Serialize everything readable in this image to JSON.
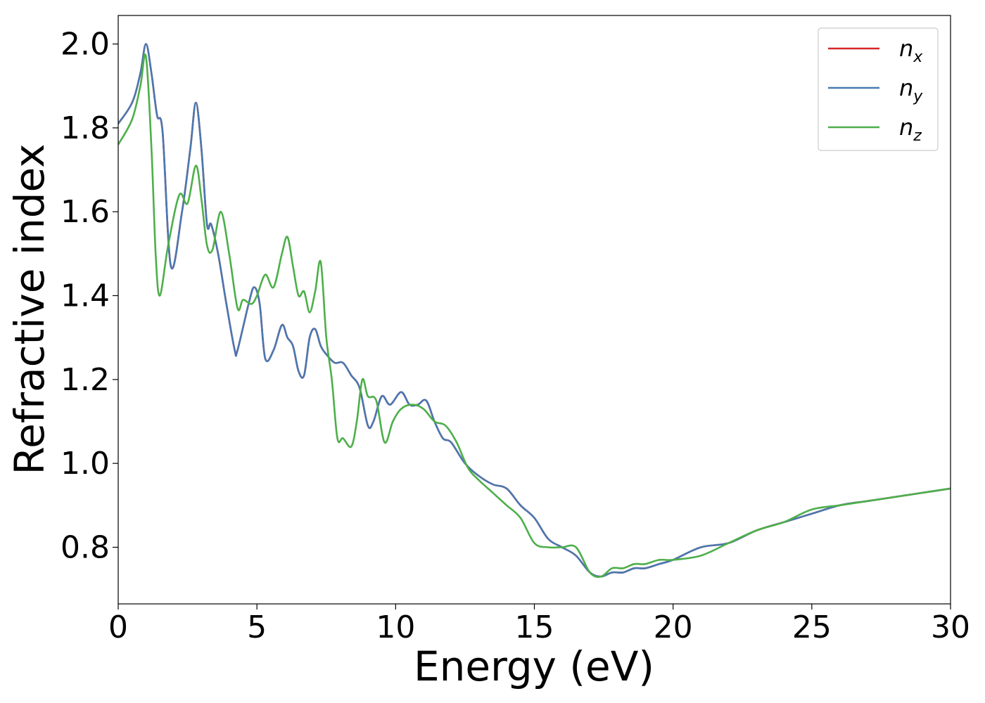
{
  "chart_data": {
    "type": "line",
    "xlabel": "Energy (eV)",
    "ylabel": "Refractive index",
    "xlim": [
      0,
      30
    ],
    "ylim": [
      0.665,
      2.068
    ],
    "xticks": [
      0,
      5,
      10,
      15,
      20,
      25,
      30
    ],
    "xtick_labels": [
      "0",
      "5",
      "10",
      "15",
      "20",
      "25",
      "30"
    ],
    "yticks": [
      0.8,
      1.0,
      1.2,
      1.4,
      1.6,
      1.8,
      2.0
    ],
    "ytick_labels": [
      "0.8",
      "1.0",
      "1.2",
      "1.4",
      "1.6",
      "1.8",
      "2.0"
    ],
    "grid": false,
    "legend_position": "top-right",
    "series": [
      {
        "name": "n",
        "subscript": "x",
        "color": "#d62728",
        "x": [
          0,
          0.5,
          0.8,
          1.0,
          1.2,
          1.4,
          1.6,
          1.9,
          2.3,
          2.6,
          2.8,
          3.0,
          3.2,
          3.35,
          3.6,
          3.9,
          4.2,
          4.3,
          4.7,
          4.9,
          5.1,
          5.3,
          5.6,
          5.9,
          6.1,
          6.3,
          6.5,
          6.7,
          6.9,
          7.1,
          7.3,
          7.5,
          7.8,
          8.1,
          8.4,
          8.7,
          9.0,
          9.2,
          9.5,
          9.8,
          10.2,
          10.5,
          10.8,
          11.1,
          11.4,
          11.7,
          12.0,
          12.5,
          13.0,
          13.5,
          14.0,
          14.5,
          15.0,
          15.5,
          16.0,
          16.5,
          17.0,
          17.4,
          17.8,
          18.2,
          18.6,
          19.0,
          19.5,
          20.0,
          21.0,
          22.0,
          23.0,
          24.0,
          25.0,
          26.0,
          27.0,
          28.0,
          29.0,
          30.0
        ],
        "values": [
          1.81,
          1.86,
          1.93,
          2.0,
          1.93,
          1.83,
          1.79,
          1.47,
          1.6,
          1.75,
          1.86,
          1.75,
          1.57,
          1.57,
          1.5,
          1.38,
          1.27,
          1.27,
          1.38,
          1.42,
          1.38,
          1.25,
          1.27,
          1.33,
          1.3,
          1.28,
          1.22,
          1.21,
          1.3,
          1.32,
          1.28,
          1.26,
          1.24,
          1.24,
          1.21,
          1.18,
          1.09,
          1.1,
          1.16,
          1.14,
          1.17,
          1.14,
          1.14,
          1.15,
          1.1,
          1.06,
          1.05,
          1.0,
          0.97,
          0.95,
          0.94,
          0.9,
          0.87,
          0.82,
          0.8,
          0.78,
          0.74,
          0.73,
          0.74,
          0.74,
          0.75,
          0.75,
          0.76,
          0.77,
          0.8,
          0.81,
          0.84,
          0.86,
          0.88,
          0.9,
          0.91,
          0.92,
          0.93,
          0.94
        ]
      },
      {
        "name": "n",
        "subscript": "y",
        "color": "#4a78b0",
        "x": [
          0,
          0.5,
          0.8,
          1.0,
          1.2,
          1.4,
          1.6,
          1.9,
          2.3,
          2.6,
          2.8,
          3.0,
          3.2,
          3.35,
          3.6,
          3.9,
          4.2,
          4.3,
          4.7,
          4.9,
          5.1,
          5.3,
          5.6,
          5.9,
          6.1,
          6.3,
          6.5,
          6.7,
          6.9,
          7.1,
          7.3,
          7.5,
          7.8,
          8.1,
          8.4,
          8.7,
          9.0,
          9.2,
          9.5,
          9.8,
          10.2,
          10.5,
          10.8,
          11.1,
          11.4,
          11.7,
          12.0,
          12.5,
          13.0,
          13.5,
          14.0,
          14.5,
          15.0,
          15.5,
          16.0,
          16.5,
          17.0,
          17.4,
          17.8,
          18.2,
          18.6,
          19.0,
          19.5,
          20.0,
          21.0,
          22.0,
          23.0,
          24.0,
          25.0,
          26.0,
          27.0,
          28.0,
          29.0,
          30.0
        ],
        "values": [
          1.81,
          1.86,
          1.93,
          2.0,
          1.93,
          1.83,
          1.79,
          1.47,
          1.6,
          1.75,
          1.86,
          1.75,
          1.57,
          1.57,
          1.5,
          1.38,
          1.27,
          1.27,
          1.38,
          1.42,
          1.38,
          1.25,
          1.27,
          1.33,
          1.3,
          1.28,
          1.22,
          1.21,
          1.3,
          1.32,
          1.28,
          1.26,
          1.24,
          1.24,
          1.21,
          1.18,
          1.09,
          1.1,
          1.16,
          1.14,
          1.17,
          1.14,
          1.14,
          1.15,
          1.1,
          1.06,
          1.05,
          1.0,
          0.97,
          0.95,
          0.94,
          0.9,
          0.87,
          0.82,
          0.8,
          0.78,
          0.74,
          0.73,
          0.74,
          0.74,
          0.75,
          0.75,
          0.76,
          0.77,
          0.8,
          0.81,
          0.84,
          0.86,
          0.88,
          0.9,
          0.91,
          0.92,
          0.93,
          0.94
        ]
      },
      {
        "name": "n",
        "subscript": "z",
        "color": "#4daf4a",
        "x": [
          0,
          0.5,
          0.8,
          1.0,
          1.2,
          1.35,
          1.5,
          1.8,
          2.2,
          2.5,
          2.8,
          3.0,
          3.2,
          3.4,
          3.7,
          4.0,
          4.3,
          4.5,
          4.8,
          5.0,
          5.3,
          5.6,
          5.9,
          6.1,
          6.3,
          6.5,
          6.7,
          6.9,
          7.1,
          7.3,
          7.5,
          7.7,
          7.9,
          8.1,
          8.4,
          8.6,
          8.8,
          9.0,
          9.3,
          9.6,
          9.9,
          10.2,
          10.6,
          11.0,
          11.4,
          11.8,
          12.2,
          12.6,
          13.0,
          13.5,
          14.0,
          14.5,
          15.0,
          15.5,
          16.0,
          16.5,
          17.0,
          17.4,
          17.8,
          18.2,
          18.6,
          19.0,
          19.5,
          20.0,
          21.0,
          22.0,
          23.0,
          24.0,
          25.0,
          26.0,
          27.0,
          28.0,
          29.0,
          30.0
        ],
        "values": [
          1.76,
          1.82,
          1.9,
          1.97,
          1.75,
          1.5,
          1.4,
          1.52,
          1.64,
          1.62,
          1.71,
          1.63,
          1.52,
          1.51,
          1.6,
          1.5,
          1.37,
          1.39,
          1.38,
          1.4,
          1.45,
          1.42,
          1.5,
          1.54,
          1.47,
          1.4,
          1.41,
          1.36,
          1.41,
          1.48,
          1.3,
          1.2,
          1.06,
          1.06,
          1.04,
          1.1,
          1.2,
          1.16,
          1.15,
          1.05,
          1.1,
          1.13,
          1.14,
          1.13,
          1.1,
          1.09,
          1.05,
          0.99,
          0.96,
          0.93,
          0.9,
          0.87,
          0.81,
          0.8,
          0.8,
          0.8,
          0.74,
          0.73,
          0.75,
          0.75,
          0.76,
          0.76,
          0.77,
          0.77,
          0.78,
          0.81,
          0.84,
          0.86,
          0.89,
          0.9,
          0.91,
          0.92,
          0.93,
          0.94
        ]
      }
    ]
  }
}
